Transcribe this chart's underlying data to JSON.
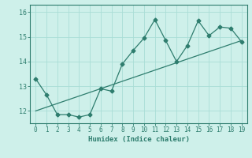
{
  "xlabel": "Humidex (Indice chaleur)",
  "x": [
    0,
    1,
    2,
    3,
    4,
    5,
    6,
    7,
    8,
    9,
    10,
    11,
    12,
    13,
    14,
    15,
    16,
    17,
    18,
    19
  ],
  "y_line": [
    13.3,
    12.65,
    11.85,
    11.85,
    11.75,
    11.85,
    12.9,
    12.8,
    13.9,
    14.45,
    14.95,
    15.7,
    14.85,
    14.0,
    14.65,
    15.65,
    15.05,
    15.4,
    15.35,
    14.8
  ],
  "y_trend": [
    12.0,
    12.15,
    12.3,
    12.45,
    12.6,
    12.75,
    12.9,
    13.05,
    13.2,
    13.35,
    13.5,
    13.65,
    13.8,
    13.95,
    14.1,
    14.25,
    14.4,
    14.55,
    14.7,
    14.85
  ],
  "line_color": "#2e7d6e",
  "trend_color": "#2e7d6e",
  "bg_color": "#cef0ea",
  "grid_color": "#aaddd6",
  "tick_color": "#2e7d6e",
  "spine_color": "#2e7d6e",
  "ylim_min": 11.5,
  "ylim_max": 16.3,
  "yticks": [
    12,
    13,
    14,
    15,
    16
  ],
  "xlim_min": -0.5,
  "xlim_max": 19.5,
  "xlabel_fontsize": 6.5,
  "tick_fontsize": 5.5
}
